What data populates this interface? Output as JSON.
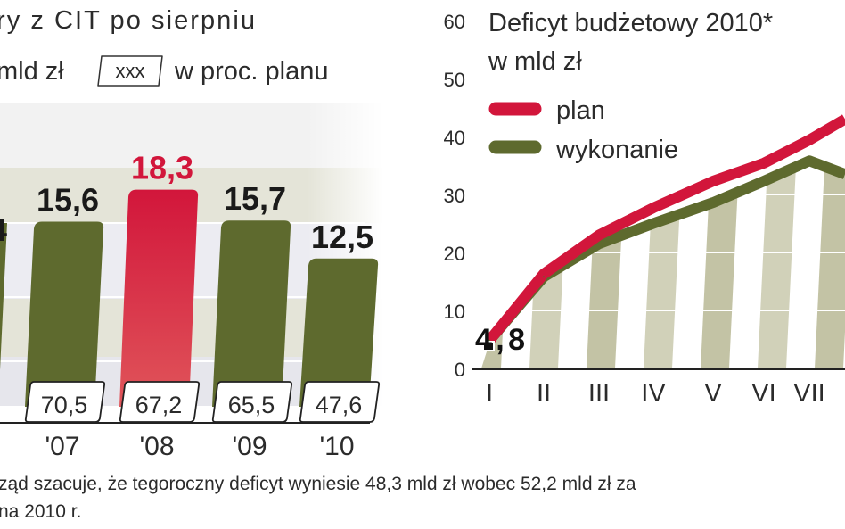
{
  "chart_data": [
    {
      "type": "bar",
      "title": "ry z CIT po sierpniu",
      "legend": {
        "unit_label": "mld zł",
        "box_sample": "xxx",
        "box_label": "w proc. planu"
      },
      "categories": [
        "'07",
        "'08",
        "'09",
        "'10"
      ],
      "values": [
        15.6,
        18.3,
        15.7,
        12.5
      ],
      "value_labels": [
        "15,6",
        "18,3",
        "15,7",
        "12,5"
      ],
      "percent_of_plan": [
        70.5,
        67.2,
        65.5,
        47.6
      ],
      "percent_labels": [
        "70,5",
        "67,2",
        "65,5",
        "47,6"
      ],
      "cut_off_left_label": "4",
      "highlight_category": "'08",
      "colors": {
        "bar": "#5e6a2e",
        "highlight": "#d2163b"
      }
    },
    {
      "type": "line",
      "title": "Deficyt budżetowy 2010*",
      "subtitle": "w mld zł",
      "categories": [
        "I",
        "II",
        "III",
        "IV",
        "V",
        "VI",
        "VII"
      ],
      "yticks": [
        "0",
        "10",
        "20",
        "30",
        "40",
        "50",
        "60"
      ],
      "ylim": [
        0,
        60
      ],
      "grid": true,
      "legend_placement": "top-left",
      "series": [
        {
          "name": "plan",
          "color": "#d2163b",
          "values": [
            4.8,
            16.3,
            23,
            27.7,
            32.3,
            35.4,
            39.4
          ]
        },
        {
          "name": "wykonanie",
          "color": "#5e6a2e",
          "values": [
            4.8,
            15.8,
            21.5,
            25,
            28.6,
            32.3,
            35.8
          ]
        }
      ],
      "annotation": "4,8"
    }
  ],
  "footnote": {
    "line1": "ząd szacuje, że tegoroczny deficyt wyniesie 48,3 mld zł wobec 52,2 mld zł za",
    "line2": "na 2010 r."
  }
}
